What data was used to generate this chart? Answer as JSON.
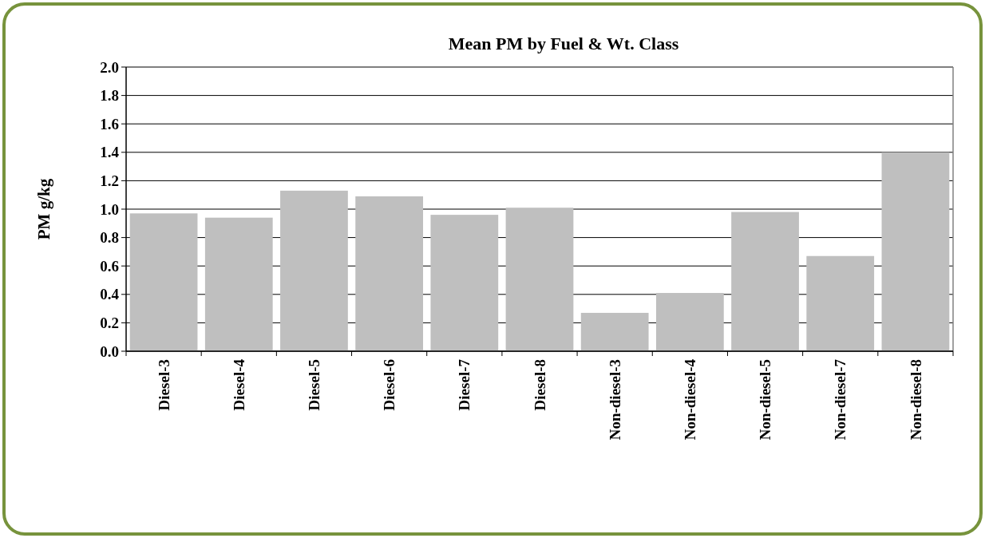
{
  "chart_data": {
    "type": "bar",
    "title": "Mean PM by Fuel & Wt. Class",
    "ylabel": "PM g/kg",
    "categories": [
      "Diesel-3",
      "Diesel-4",
      "Diesel-5",
      "Diesel-6",
      "Diesel-7",
      "Diesel-8",
      "Non-diesel-3",
      "Non-diesel-4",
      "Non-diesel-5",
      "Non-diesel-7",
      "Non-diesel-8"
    ],
    "values": [
      0.97,
      0.94,
      1.13,
      1.09,
      0.96,
      1.01,
      0.27,
      0.41,
      0.98,
      0.67,
      1.4
    ],
    "color": "#bfbfbf",
    "ylim": [
      0,
      2
    ],
    "yticks": [
      {
        "value": 0,
        "label": "0.0"
      },
      {
        "value": 0.2,
        "label": "0.2"
      },
      {
        "value": 0.4,
        "label": "0.4"
      },
      {
        "value": 0.6,
        "label": "0.6"
      },
      {
        "value": 0.8,
        "label": "0.8"
      },
      {
        "value": 1,
        "label": "1.0"
      },
      {
        "value": 1.2,
        "label": "1.2"
      },
      {
        "value": 1.4,
        "label": "1.4"
      },
      {
        "value": 1.6,
        "label": "1.6"
      },
      {
        "value": 1.8,
        "label": "1.8"
      },
      {
        "value": 2,
        "label": "2.0"
      }
    ],
    "grid": "y"
  }
}
